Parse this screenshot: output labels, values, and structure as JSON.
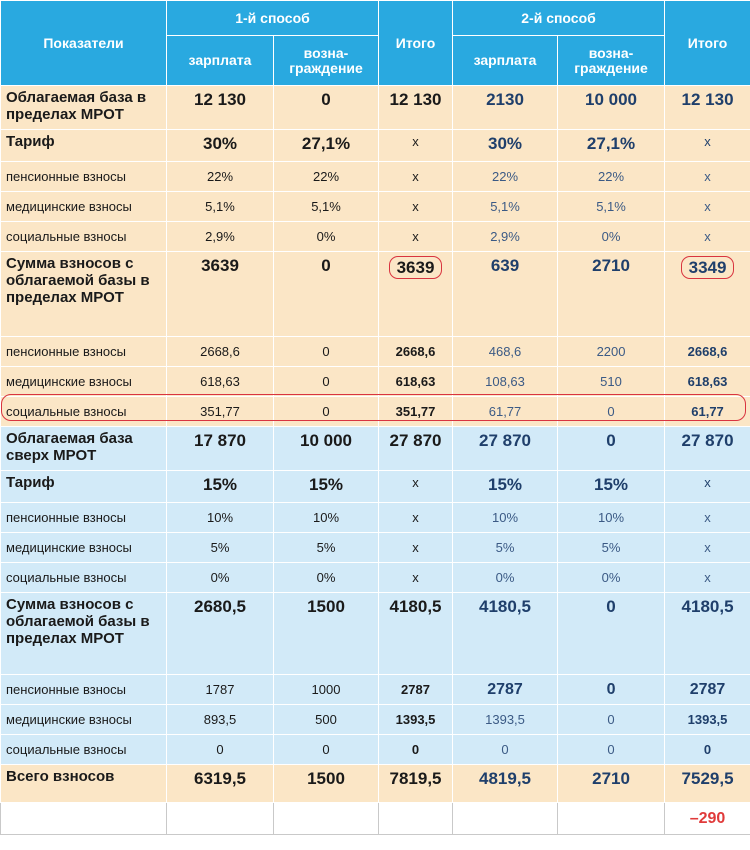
{
  "header": {
    "indicators": "Показатели",
    "method1": "1-й способ",
    "method2": "2-й способ",
    "total": "Итого",
    "salary": "зарплата",
    "reward": "возна-\nграждение"
  },
  "rows": [
    {
      "label": "Облагаемая база в пределах МРОТ",
      "v": [
        "12 130",
        "0",
        "12 130",
        "2130",
        "10 000",
        "12 130"
      ]
    },
    {
      "label": "Тариф",
      "v": [
        "30%",
        "27,1%",
        "x",
        "30%",
        "27,1%",
        "x"
      ]
    },
    {
      "label": "пенсионные взносы",
      "v": [
        "22%",
        "22%",
        "x",
        "22%",
        "22%",
        "x"
      ]
    },
    {
      "label": "медицинские взносы",
      "v": [
        "5,1%",
        "5,1%",
        "x",
        "5,1%",
        "5,1%",
        "x"
      ]
    },
    {
      "label": "социальные взносы",
      "v": [
        "2,9%",
        "0%",
        "x",
        "2,9%",
        "0%",
        "x"
      ]
    },
    {
      "label": "Сумма взносов с облагаемой базы в пределах МРОТ",
      "v": [
        "3639",
        "0",
        "3639",
        "639",
        "2710",
        "3349"
      ]
    },
    {
      "label": "пенсионные взносы",
      "v": [
        "2668,6",
        "0",
        "2668,6",
        "468,6",
        "2200",
        "2668,6"
      ]
    },
    {
      "label": "медицинские взносы",
      "v": [
        "618,63",
        "0",
        "618,63",
        "108,63",
        "510",
        "618,63"
      ]
    },
    {
      "label": "социальные взносы",
      "v": [
        "351,77",
        "0",
        "351,77",
        "61,77",
        "0",
        "61,77"
      ]
    },
    {
      "label": "Облагаемая база сверх МРОТ",
      "v": [
        "17 870",
        "10 000",
        "27 870",
        "27 870",
        "0",
        "27 870"
      ]
    },
    {
      "label": "Тариф",
      "v": [
        "15%",
        "15%",
        "x",
        "15%",
        "15%",
        "x"
      ]
    },
    {
      "label": "пенсионные взносы",
      "v": [
        "10%",
        "10%",
        "x",
        "10%",
        "10%",
        "x"
      ]
    },
    {
      "label": "медицинские взносы",
      "v": [
        "5%",
        "5%",
        "x",
        "5%",
        "5%",
        "x"
      ]
    },
    {
      "label": "социальные взносы",
      "v": [
        "0%",
        "0%",
        "x",
        "0%",
        "0%",
        "x"
      ]
    },
    {
      "label": "Сумма взносов с облагаемой базы в пределах МРОТ",
      "v": [
        "2680,5",
        "1500",
        "4180,5",
        "4180,5",
        "0",
        "4180,5"
      ]
    },
    {
      "label": "пенсионные взносы",
      "v": [
        "1787",
        "1000",
        "2787",
        "2787",
        "0",
        "2787"
      ]
    },
    {
      "label": "медицинские взносы",
      "v": [
        "893,5",
        "500",
        "1393,5",
        "1393,5",
        "0",
        "1393,5"
      ]
    },
    {
      "label": "социальные взносы",
      "v": [
        "0",
        "0",
        "0",
        "0",
        "0",
        "0"
      ]
    },
    {
      "label": "Всего взносов",
      "v": [
        "6319,5",
        "1500",
        "7819,5",
        "4819,5",
        "2710",
        "7529,5"
      ]
    }
  ],
  "difference": "–290",
  "colors": {
    "header_bg": "#29a9e0",
    "section_peach": "#fbe6c6",
    "section_blue": "#d2eaf8",
    "method2_text": "#1f3f6b",
    "highlight_red": "#d9343f"
  }
}
